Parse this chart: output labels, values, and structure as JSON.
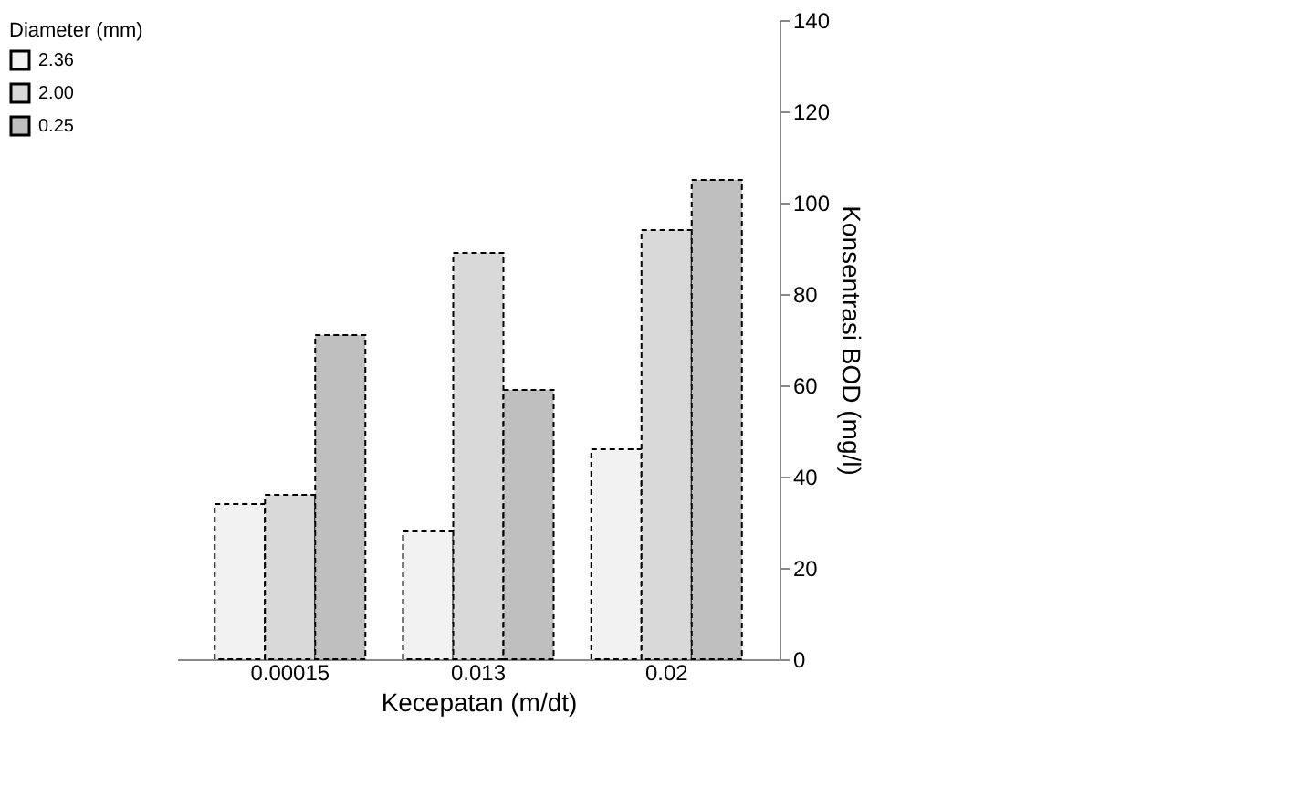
{
  "chart_data": {
    "type": "bar",
    "xlabel": "Kecepatan (m/dt)",
    "ylabel": "Konsentrasi BOD (mg/l)",
    "legend_title": "Diameter (mm)",
    "categories": [
      "0.00015",
      "0.013",
      "0.02"
    ],
    "series": [
      {
        "name": "2.36",
        "color": "#f2f2f2",
        "values": [
          34,
          28,
          46
        ]
      },
      {
        "name": "2.00",
        "color": "#d9d9d9",
        "values": [
          36,
          89,
          94
        ]
      },
      {
        "name": "0.25",
        "color": "#bfbfbf",
        "values": [
          71,
          59,
          105
        ]
      }
    ],
    "ylim": [
      0,
      140
    ],
    "yticks": [
      0,
      20,
      40,
      60,
      80,
      100,
      120,
      140
    ],
    "grid": false,
    "legend": "left"
  }
}
